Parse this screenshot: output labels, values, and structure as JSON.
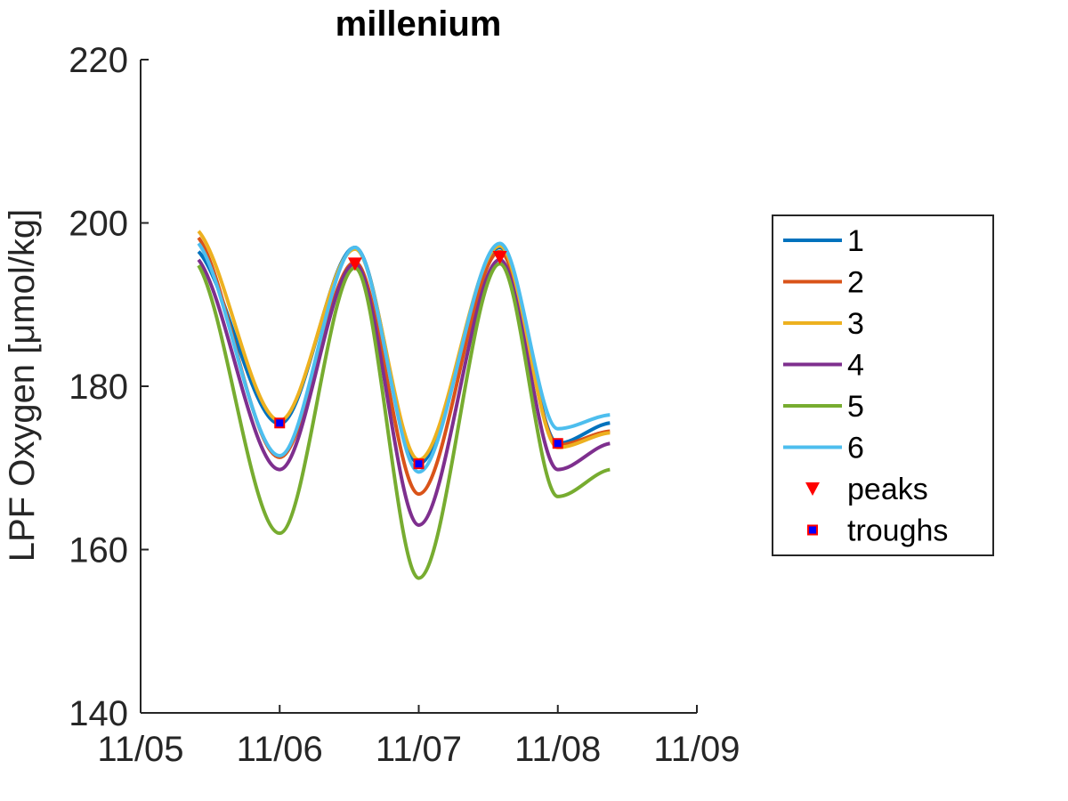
{
  "chart_data": {
    "type": "line",
    "title": "millenium",
    "xlabel": "",
    "ylabel": "LPF Oxygen [μmol/kg]",
    "xlim": [
      "11/05",
      "11/09"
    ],
    "ylim": [
      140,
      220
    ],
    "x_ticks": [
      "11/05",
      "11/06",
      "11/07",
      "11/08",
      "11/09"
    ],
    "y_ticks": [
      140,
      160,
      180,
      200,
      220
    ],
    "grid": false,
    "legend_position": "right",
    "series": [
      {
        "name": "1",
        "color": "#0072BD",
        "points": [
          [
            "11/05 10:00",
            196.5
          ],
          [
            "11/06 00:00",
            175.4
          ],
          [
            "11/06 13:00",
            197.0
          ],
          [
            "11/07 00:00",
            170.5
          ],
          [
            "11/07 14:00",
            197.0
          ],
          [
            "11/08 00:00",
            173.0
          ],
          [
            "11/08 09:00",
            175.5
          ]
        ]
      },
      {
        "name": "2",
        "color": "#D95319",
        "points": [
          [
            "11/05 10:00",
            198.2
          ],
          [
            "11/06 00:00",
            171.3
          ],
          [
            "11/06 13:00",
            195.2
          ],
          [
            "11/07 00:00",
            166.8
          ],
          [
            "11/07 14:00",
            196.5
          ],
          [
            "11/08 00:00",
            172.8
          ],
          [
            "11/08 09:00",
            174.5
          ]
        ]
      },
      {
        "name": "3",
        "color": "#EDB120",
        "points": [
          [
            "11/05 10:00",
            199.0
          ],
          [
            "11/06 00:00",
            175.8
          ],
          [
            "11/06 13:00",
            196.8
          ],
          [
            "11/07 00:00",
            171.0
          ],
          [
            "11/07 14:00",
            197.2
          ],
          [
            "11/08 00:00",
            172.5
          ],
          [
            "11/08 09:00",
            174.3
          ]
        ]
      },
      {
        "name": "4",
        "color": "#7E2F8E",
        "points": [
          [
            "11/05 10:00",
            195.5
          ],
          [
            "11/06 00:00",
            169.8
          ],
          [
            "11/06 13:00",
            195.0
          ],
          [
            "11/07 00:00",
            163.0
          ],
          [
            "11/07 14:00",
            195.5
          ],
          [
            "11/08 00:00",
            169.8
          ],
          [
            "11/08 09:00",
            173.0
          ]
        ]
      },
      {
        "name": "5",
        "color": "#77AC30",
        "points": [
          [
            "11/05 10:00",
            194.8
          ],
          [
            "11/06 00:00",
            162.0
          ],
          [
            "11/06 13:00",
            194.5
          ],
          [
            "11/07 00:00",
            156.5
          ],
          [
            "11/07 14:00",
            195.0
          ],
          [
            "11/08 00:00",
            166.5
          ],
          [
            "11/08 09:00",
            169.8
          ]
        ]
      },
      {
        "name": "6",
        "color": "#4DBEEE",
        "points": [
          [
            "11/05 10:00",
            197.5
          ],
          [
            "11/06 00:00",
            171.5
          ],
          [
            "11/06 13:00",
            197.0
          ],
          [
            "11/07 00:00",
            169.5
          ],
          [
            "11/07 14:00",
            197.5
          ],
          [
            "11/08 00:00",
            174.8
          ],
          [
            "11/08 09:00",
            176.5
          ]
        ]
      }
    ],
    "peaks": {
      "name": "peaks",
      "color": "#FF0000",
      "points": [
        [
          "11/06 13:00",
          195.0
        ],
        [
          "11/07 14:00",
          195.8
        ]
      ]
    },
    "troughs": {
      "name": "troughs",
      "color": "#0000FF",
      "edge_color": "#FF0000",
      "points": [
        [
          "11/06 00:00",
          175.5
        ],
        [
          "11/07 00:00",
          170.5
        ],
        [
          "11/08 00:00",
          173.0
        ]
      ]
    }
  }
}
